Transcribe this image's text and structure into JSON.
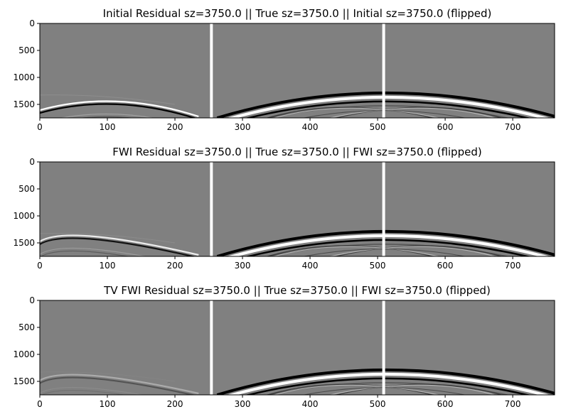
{
  "chart_data": [
    {
      "type": "heatmap",
      "title": "Initial Residual sz=3750.0   ||   True sz=3750.0   ||   Initial sz=3750.0 (flipped)",
      "xlim": [
        0,
        762
      ],
      "ylim": [
        0,
        1750
      ],
      "x_ticks": [
        "0",
        "100",
        "200",
        "300",
        "400",
        "500",
        "600",
        "700"
      ],
      "y_ticks": [
        "0",
        "500",
        "1000",
        "1500"
      ],
      "separators_x": [
        254,
        509
      ],
      "colormap": "gray",
      "residual_strength": "strong",
      "residual_arc": {
        "apex_x": 105,
        "apex_y": 1490
      }
    },
    {
      "type": "heatmap",
      "title": "FWI Residual sz=3750.0   ||   True sz=3750.0   ||   FWI sz=3750.0 (flipped)",
      "xlim": [
        0,
        762
      ],
      "ylim": [
        0,
        1750
      ],
      "x_ticks": [
        "0",
        "100",
        "200",
        "300",
        "400",
        "500",
        "600",
        "700"
      ],
      "y_ticks": [
        "0",
        "500",
        "1000",
        "1500"
      ],
      "separators_x": [
        254,
        509
      ],
      "colormap": "gray",
      "residual_strength": "medium",
      "residual_arc": {
        "apex_x": 0,
        "apex_y": 1330
      }
    },
    {
      "type": "heatmap",
      "title": "TV FWI Residual sz=3750.0   ||   True sz=3750.0   ||   FWI sz=3750.0 (flipped)",
      "xlim": [
        0,
        762
      ],
      "ylim": [
        0,
        1750
      ],
      "x_ticks": [
        "0",
        "100",
        "200",
        "300",
        "400",
        "500",
        "600",
        "700"
      ],
      "y_ticks": [
        "0",
        "500",
        "1000",
        "1500"
      ],
      "separators_x": [
        254,
        509
      ],
      "colormap": "gray",
      "residual_strength": "faint",
      "residual_arc": {
        "apex_x": 0,
        "apex_y": 1360
      }
    }
  ]
}
